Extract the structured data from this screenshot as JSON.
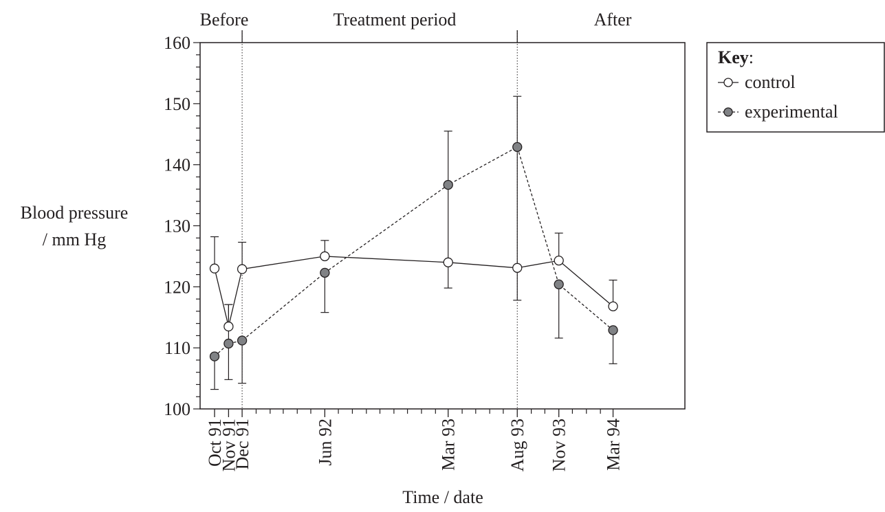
{
  "chart_data": {
    "type": "line",
    "ylabel": [
      "Blood pressure",
      "/ mm Hg"
    ],
    "xlabel": "Time / date",
    "ylim": [
      100,
      160
    ],
    "y_major_ticks": [
      100,
      110,
      120,
      130,
      140,
      150,
      160
    ],
    "y_minor_step": 2,
    "x_scale": "time",
    "x_range": [
      "1991-08-30",
      "1994-08-07"
    ],
    "categories": [
      "Oct 91",
      "Nov 91",
      "Dec 91",
      "Jun 92",
      "Mar 93",
      "Aug 93",
      "Nov 93",
      "Mar 94"
    ],
    "x_dates": [
      "1991-10-01",
      "1991-11-01",
      "1991-12-01",
      "1992-06-01",
      "1993-03-01",
      "1993-08-01",
      "1993-11-01",
      "1994-03-01"
    ],
    "periods": [
      {
        "label": "Before"
      },
      {
        "label": "Treatment period"
      },
      {
        "label": "After"
      }
    ],
    "period_boundaries": [
      "1991-12-01",
      "1993-08-01"
    ],
    "series": [
      {
        "name": "control",
        "marker": "open-circle",
        "line_style": "solid",
        "color": "#ffffff",
        "values": [
          123.0,
          113.5,
          122.9,
          125.0,
          124.0,
          123.1,
          124.3,
          116.8
        ],
        "error_upper": [
          128.2,
          117.1,
          127.3,
          127.6,
          145.5,
          151.2,
          128.8,
          121.1
        ],
        "error_lower": [
          123.0,
          113.5,
          122.9,
          125.0,
          119.8,
          117.8,
          124.3,
          116.8
        ]
      },
      {
        "name": "experimental",
        "marker": "filled-circle",
        "line_style": "dashed",
        "color": "#808285",
        "values": [
          108.6,
          110.7,
          111.2,
          122.3,
          136.7,
          142.9,
          120.4,
          112.9
        ],
        "error_upper": [
          108.6,
          117.1,
          111.2,
          122.3,
          136.7,
          142.9,
          120.4,
          112.9
        ],
        "error_lower": [
          103.2,
          104.8,
          104.2,
          115.8,
          136.7,
          142.9,
          111.6,
          107.4
        ]
      }
    ],
    "legend": {
      "title_bold": "Key",
      "title_rest": ":",
      "entries": [
        "control",
        "experimental"
      ],
      "placement": "right"
    },
    "grid": false
  }
}
